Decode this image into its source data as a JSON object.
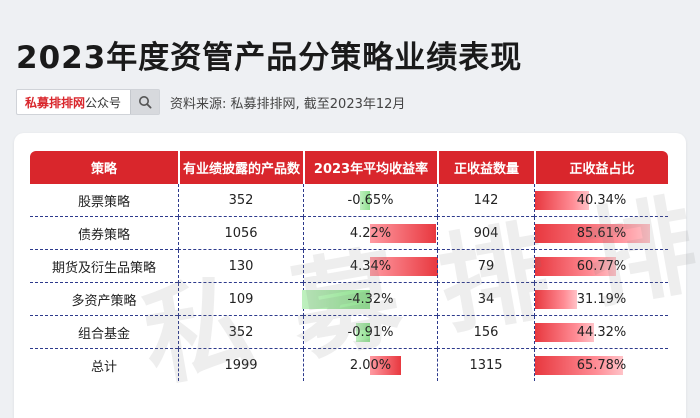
{
  "title": "2023年度资管产品分策略业绩表现",
  "search": {
    "brand": "私募排排网",
    "suffix": "公众号",
    "icon": "search-icon"
  },
  "source": "资料来源: 私募排排网, 截至2023年12月",
  "watermark": "私募排排网",
  "colors": {
    "header": "#d9262c",
    "positive": "#e8383f",
    "negative": "#8fe08f"
  },
  "table": {
    "headers": [
      "策略",
      "有业绩披露的产品数",
      "2023年平均收益率",
      "正收益数量",
      "正收益占比"
    ],
    "rows": [
      {
        "strategy": "股票策略",
        "count": "352",
        "avg_return": "-0.65%",
        "avg_return_value": -0.65,
        "positive_count": "142",
        "positive_ratio": "40.34%",
        "positive_ratio_value": 40.34
      },
      {
        "strategy": "债券策略",
        "count": "1056",
        "avg_return": "4.22%",
        "avg_return_value": 4.22,
        "positive_count": "904",
        "positive_ratio": "85.61%",
        "positive_ratio_value": 85.61
      },
      {
        "strategy": "期货及衍生品策略",
        "count": "130",
        "avg_return": "4.34%",
        "avg_return_value": 4.34,
        "positive_count": "79",
        "positive_ratio": "60.77%",
        "positive_ratio_value": 60.77
      },
      {
        "strategy": "多资产策略",
        "count": "109",
        "avg_return": "-4.32%",
        "avg_return_value": -4.32,
        "positive_count": "34",
        "positive_ratio": "31.19%",
        "positive_ratio_value": 31.19
      },
      {
        "strategy": "组合基金",
        "count": "352",
        "avg_return": "-0.91%",
        "avg_return_value": -0.91,
        "positive_count": "156",
        "positive_ratio": "44.32%",
        "positive_ratio_value": 44.32
      },
      {
        "strategy": "总计",
        "count": "1999",
        "avg_return": "2.00%",
        "avg_return_value": 2.0,
        "positive_count": "1315",
        "positive_ratio": "65.78%",
        "positive_ratio_value": 65.78
      }
    ]
  }
}
